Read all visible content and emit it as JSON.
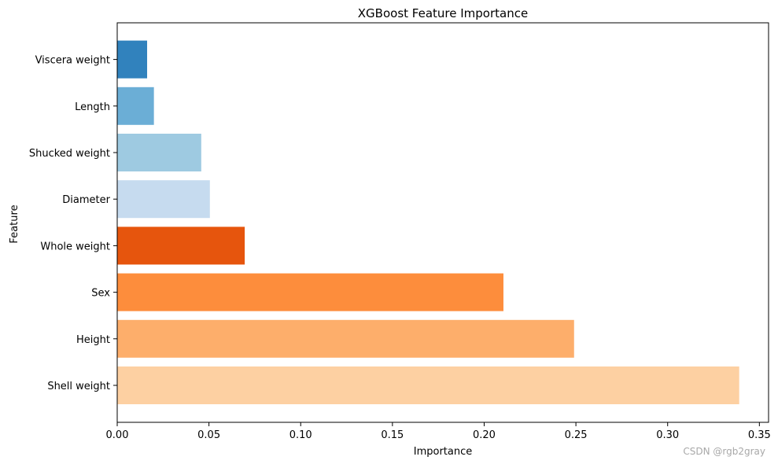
{
  "chart_data": {
    "type": "bar",
    "orientation": "horizontal",
    "title": "XGBoost Feature Importance",
    "xlabel": "Importance",
    "ylabel": "Feature",
    "categories": [
      "Shell weight",
      "Height",
      "Sex",
      "Whole weight",
      "Diameter",
      "Shucked weight",
      "Length",
      "Viscera weight"
    ],
    "values": [
      0.339,
      0.249,
      0.2105,
      0.0695,
      0.0505,
      0.0458,
      0.02,
      0.0163
    ],
    "colors": [
      "#fdd0a2",
      "#fdae6b",
      "#fd8d3c",
      "#e6550d",
      "#c6dbef",
      "#9ecae1",
      "#6baed6",
      "#3182bd"
    ],
    "xlim": [
      0,
      0.355
    ],
    "xticks": [
      0.0,
      0.05,
      0.1,
      0.15,
      0.2,
      0.25,
      0.3,
      0.35
    ],
    "xtick_labels": [
      "0.00",
      "0.05",
      "0.10",
      "0.15",
      "0.20",
      "0.25",
      "0.30",
      "0.35"
    ],
    "grid": false,
    "legend": "none"
  },
  "watermark": "CSDN @rgb2gray"
}
